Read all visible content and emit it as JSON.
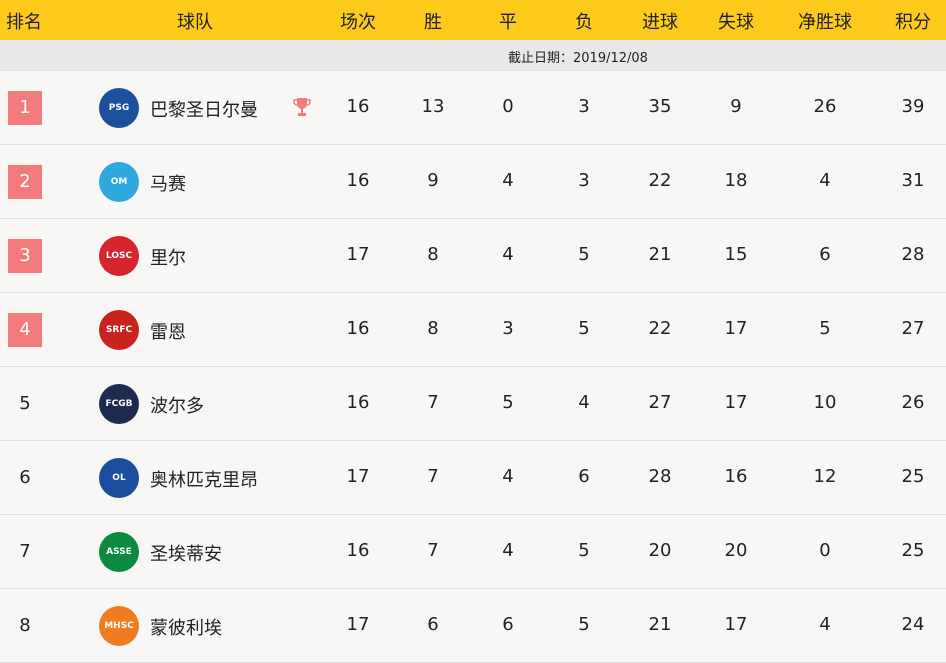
{
  "header": {
    "rank": "排名",
    "team": "球队",
    "played": "场次",
    "won": "胜",
    "drawn": "平",
    "lost": "负",
    "gf": "进球",
    "ga": "失球",
    "gd": "净胜球",
    "pts": "积分"
  },
  "subheader": {
    "date": "截止日期：2019/12/08"
  },
  "colors": {
    "header_bg": "#fecb1c",
    "highlight_rank": "#f47b7b",
    "trophy": "#f47b7b"
  },
  "rows": [
    {
      "rank": "1",
      "team": "巴黎圣日尔曼",
      "trophy": true,
      "played": "16",
      "won": "13",
      "drawn": "0",
      "lost": "3",
      "gf": "35",
      "ga": "9",
      "gd": "26",
      "pts": "39",
      "logo": "PSG",
      "logo_color": "#1c4f9c"
    },
    {
      "rank": "2",
      "team": "马赛",
      "played": "16",
      "won": "9",
      "drawn": "4",
      "lost": "3",
      "gf": "22",
      "ga": "18",
      "gd": "4",
      "pts": "31",
      "logo": "OM",
      "logo_color": "#2fa8de"
    },
    {
      "rank": "3",
      "team": "里尔",
      "played": "17",
      "won": "8",
      "drawn": "4",
      "lost": "5",
      "gf": "21",
      "ga": "15",
      "gd": "6",
      "pts": "28",
      "logo": "LOSC",
      "logo_color": "#d6242f"
    },
    {
      "rank": "4",
      "team": "雷恩",
      "played": "16",
      "won": "8",
      "drawn": "3",
      "lost": "5",
      "gf": "22",
      "ga": "17",
      "gd": "5",
      "pts": "27",
      "logo": "SRFC",
      "logo_color": "#c9231e"
    },
    {
      "rank": "5",
      "team": "波尔多",
      "played": "16",
      "won": "7",
      "drawn": "5",
      "lost": "4",
      "gf": "27",
      "ga": "17",
      "gd": "10",
      "pts": "26",
      "logo": "FCGB",
      "logo_color": "#1d2b50"
    },
    {
      "rank": "6",
      "team": "奥林匹克里昂",
      "played": "17",
      "won": "7",
      "drawn": "4",
      "lost": "6",
      "gf": "28",
      "ga": "16",
      "gd": "12",
      "pts": "25",
      "logo": "OL",
      "logo_color": "#1a4d9c"
    },
    {
      "rank": "7",
      "team": "圣埃蒂安",
      "played": "16",
      "won": "7",
      "drawn": "4",
      "lost": "5",
      "gf": "20",
      "ga": "20",
      "gd": "0",
      "pts": "25",
      "logo": "ASSE",
      "logo_color": "#0d8a3f"
    },
    {
      "rank": "8",
      "team": "蒙彼利埃",
      "played": "17",
      "won": "6",
      "drawn": "6",
      "lost": "5",
      "gf": "21",
      "ga": "17",
      "gd": "4",
      "pts": "24",
      "logo": "MHSC",
      "logo_color": "#f07c22"
    }
  ]
}
